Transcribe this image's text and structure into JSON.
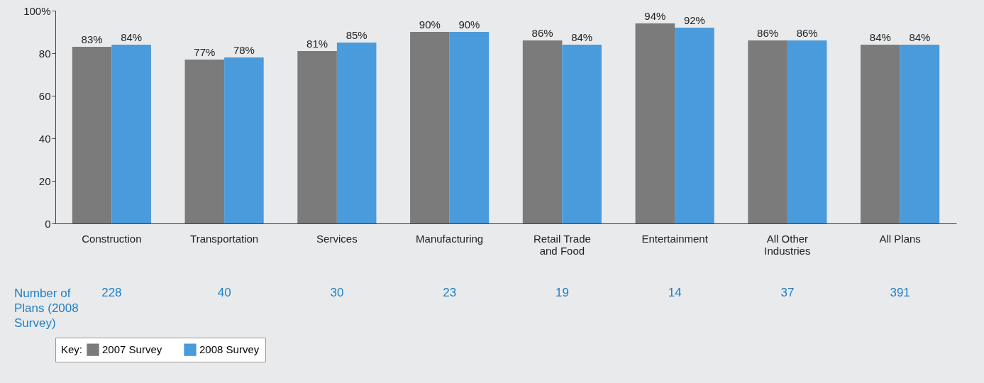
{
  "chart_data": {
    "type": "bar",
    "categories": [
      "Construction",
      "Transportation",
      "Services",
      "Manufacturing",
      "Retail Trade and Food",
      "Entertainment",
      "All Other Industries",
      "All Plans"
    ],
    "series": [
      {
        "name": "2007 Survey",
        "color": "#7b7b7b",
        "values": [
          83,
          77,
          81,
          90,
          86,
          94,
          86,
          84
        ],
        "value_labels": [
          "83%",
          "77%",
          "81%",
          "90%",
          "86%",
          "94%",
          "86%",
          "84%"
        ]
      },
      {
        "name": "2008 Survey",
        "color": "#4a9bdb",
        "values": [
          84,
          78,
          85,
          90,
          84,
          92,
          86,
          84
        ],
        "value_labels": [
          "84%",
          "78%",
          "85%",
          "90%",
          "84%",
          "92%",
          "86%",
          "84%"
        ]
      }
    ],
    "ylim": [
      0,
      100
    ],
    "yticks": [
      0,
      20,
      40,
      60,
      80,
      {
        "value": 100,
        "label": "100%"
      }
    ],
    "grid": false,
    "legend": "bottom",
    "legend_title": "Key:",
    "annotations": [
      "Number of Plans (2008 Survey)",
      "228",
      "40",
      "30",
      "23",
      "19",
      "14",
      "37",
      "391"
    ]
  }
}
